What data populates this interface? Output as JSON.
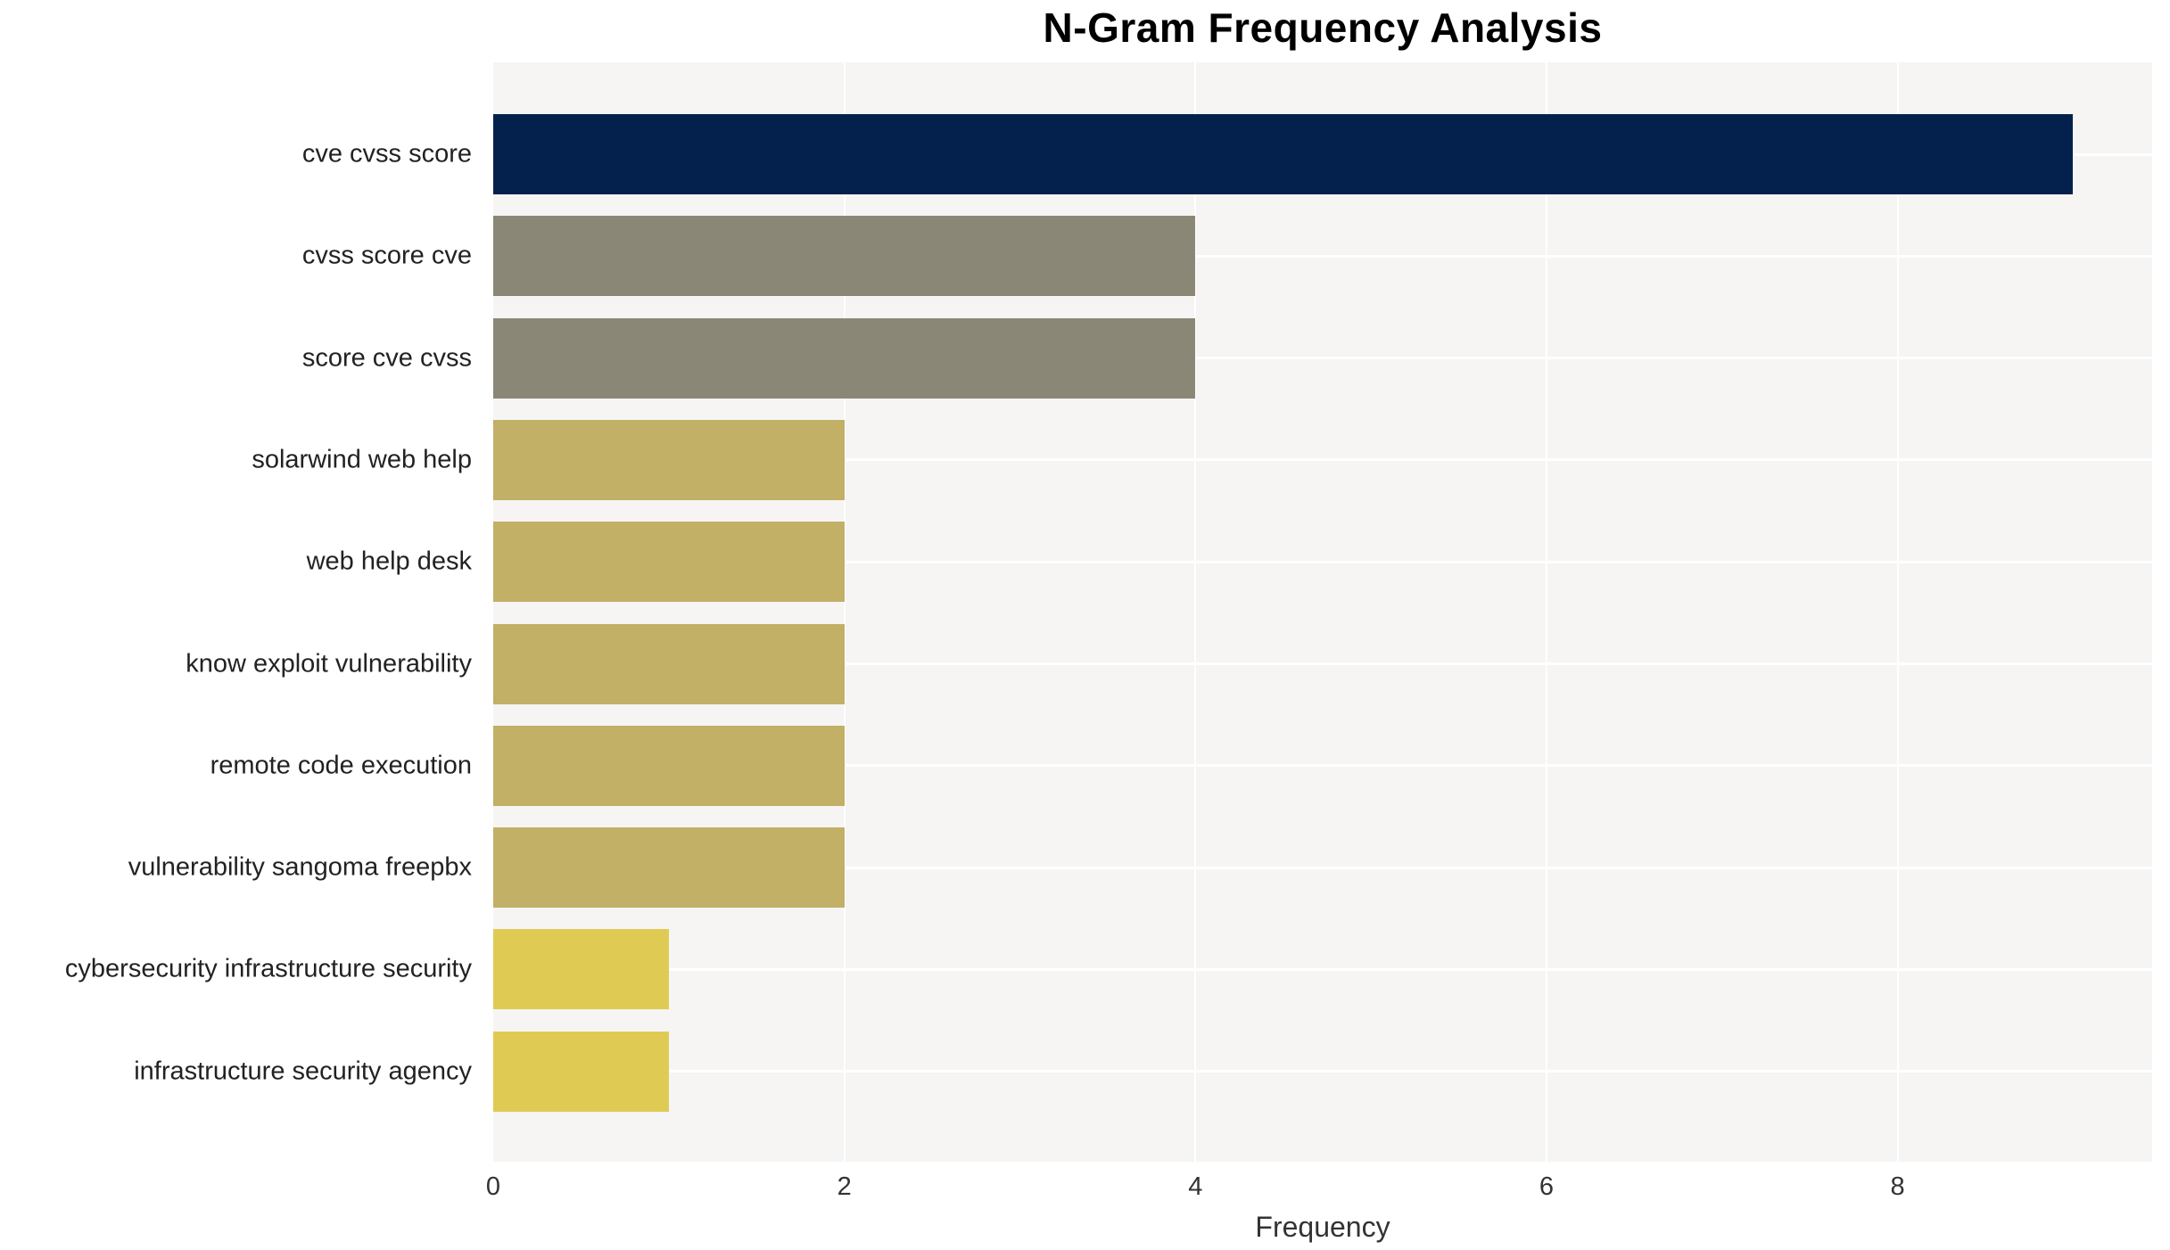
{
  "page": {
    "background": "#ffffff"
  },
  "chart_data": {
    "type": "bar",
    "orientation": "horizontal",
    "title": "N-Gram Frequency Analysis",
    "xlabel": "Frequency",
    "ylabel": "",
    "categories": [
      "cve cvss score",
      "cvss score cve",
      "score cve cvss",
      "solarwind web help",
      "web help desk",
      "know exploit vulnerability",
      "remote code execution",
      "vulnerability sangoma freepbx",
      "cybersecurity infrastructure security",
      "infrastructure security agency"
    ],
    "values": [
      9,
      4,
      4,
      2,
      2,
      2,
      2,
      2,
      1,
      1
    ],
    "bar_colors": [
      "#04214e",
      "#8b8777",
      "#8b8777",
      "#c1b065",
      "#c1b065",
      "#c1b065",
      "#c1b065",
      "#c1b065",
      "#dfcb54",
      "#dfcb54"
    ],
    "xlim": [
      0,
      9.45
    ],
    "xticks": [
      0,
      2,
      4,
      6,
      8
    ],
    "grid": true,
    "legend": "none",
    "colors": {
      "plot_bg": "#f6f5f4",
      "grid": "#ffffff",
      "title": "#000000",
      "category_label": "#222222",
      "tick_label": "#333333"
    }
  }
}
